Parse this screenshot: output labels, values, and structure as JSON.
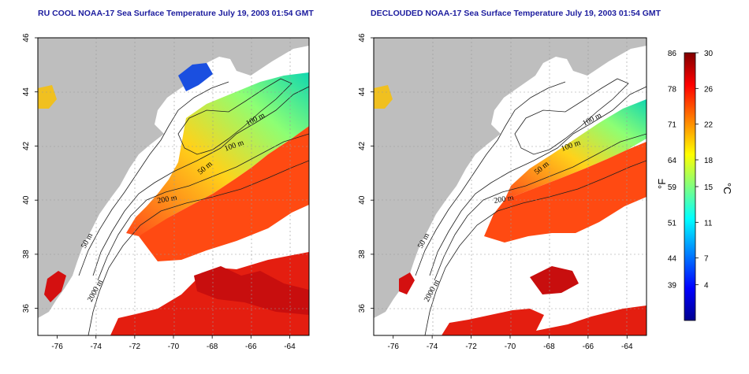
{
  "panels": [
    {
      "id": "left",
      "title": "RU COOL NOAA-17 Sea Surface Temperature July 19, 2003 01:54 GMT",
      "contour_labels": [
        "100 m",
        "100 m",
        "50 m",
        "200 m",
        "50 m",
        "2000 m"
      ]
    },
    {
      "id": "right",
      "title": "DECLOUDED NOAA-17 Sea Surface Temperature July 19, 2003 01:54 GMT",
      "contour_labels": [
        "100 m",
        "100 m",
        "50 m",
        "200 m",
        "50 m",
        "2000 m"
      ]
    }
  ],
  "axes": {
    "x_ticks": [
      "-76",
      "-74",
      "-72",
      "-70",
      "-68",
      "-66",
      "-64"
    ],
    "y_ticks": [
      "46",
      "44",
      "42",
      "40",
      "38",
      "36"
    ],
    "lon_range": [
      -77,
      -63
    ],
    "lat_range": [
      35,
      46
    ]
  },
  "colorbar": {
    "fahrenheit_ticks": [
      "86",
      "78",
      "71",
      "64",
      "59",
      "51",
      "44",
      "39"
    ],
    "celsius_ticks": [
      "30",
      "26",
      "22",
      "18",
      "15",
      "11",
      "7",
      "4"
    ],
    "left_unit": "°F",
    "right_unit": "°C",
    "range_c": [
      0,
      30
    ],
    "colors": [
      "#00008f",
      "#0000ff",
      "#0080ff",
      "#00ffff",
      "#80ff80",
      "#ffff00",
      "#ff8000",
      "#ff0000",
      "#800000"
    ]
  },
  "colors": {
    "land": "#bebebe",
    "ocean_cloud": "#ffffff",
    "title": "#1c1c9e"
  }
}
